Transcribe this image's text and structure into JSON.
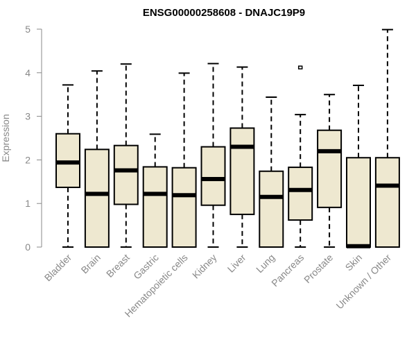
{
  "chart_data": {
    "type": "boxplot",
    "title": "ENSG00000258608 - DNAJC19P9",
    "xlabel": "",
    "ylabel": "Expression",
    "ylim": [
      0,
      5
    ],
    "yticks": [
      "0",
      "1",
      "2",
      "3",
      "4",
      "5"
    ],
    "box_fill": "#EEE8D0",
    "axis_color": "#888888",
    "categories": [
      "Bladder",
      "Brain",
      "Breast",
      "Gastric",
      "Hematopoietic cells",
      "Kidney",
      "Liver",
      "Lung",
      "Pancreas",
      "Prostate",
      "Skin",
      "Unknown / Other"
    ],
    "boxes": [
      {
        "min": 0,
        "q1": 1.37,
        "median": 1.94,
        "q3": 2.6,
        "max": 3.72,
        "outliers": []
      },
      {
        "min": 0,
        "q1": 0,
        "median": 1.22,
        "q3": 2.24,
        "max": 4.04,
        "outliers": []
      },
      {
        "min": 0,
        "q1": 0.98,
        "median": 1.76,
        "q3": 2.33,
        "max": 4.2,
        "outliers": []
      },
      {
        "min": 0,
        "q1": 0,
        "median": 1.22,
        "q3": 1.84,
        "max": 2.59,
        "outliers": []
      },
      {
        "min": 0,
        "q1": 0,
        "median": 1.19,
        "q3": 1.82,
        "max": 3.99,
        "outliers": []
      },
      {
        "min": 0,
        "q1": 0.96,
        "median": 1.56,
        "q3": 2.3,
        "max": 4.21,
        "outliers": []
      },
      {
        "min": 0,
        "q1": 0.75,
        "median": 2.3,
        "q3": 2.73,
        "max": 4.13,
        "outliers": []
      },
      {
        "min": 0,
        "q1": 0,
        "median": 1.15,
        "q3": 1.74,
        "max": 3.44,
        "outliers": []
      },
      {
        "min": 0,
        "q1": 0.62,
        "median": 1.31,
        "q3": 1.83,
        "max": 3.04,
        "outliers": [
          4.12
        ]
      },
      {
        "min": 0,
        "q1": 0.91,
        "median": 2.2,
        "q3": 2.68,
        "max": 3.5,
        "outliers": []
      },
      {
        "min": 0,
        "q1": 0,
        "median": 0.02,
        "q3": 2.05,
        "max": 3.71,
        "outliers": []
      },
      {
        "min": 0,
        "q1": 0,
        "median": 1.41,
        "q3": 2.05,
        "max": 4.99,
        "outliers": []
      }
    ]
  }
}
